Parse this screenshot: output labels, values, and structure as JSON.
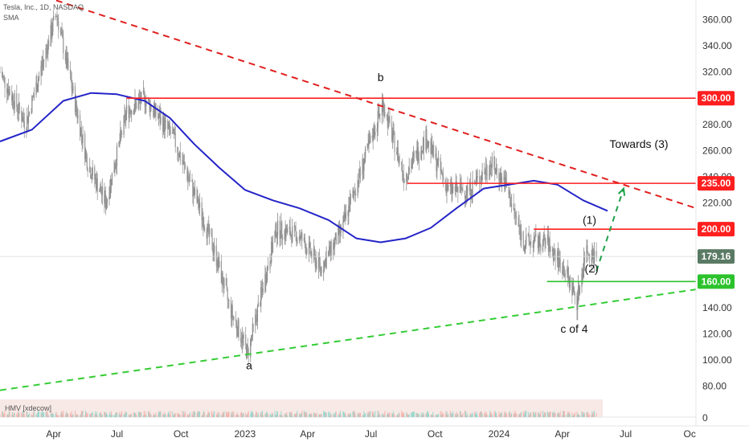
{
  "header": {
    "symbol_line": "Tesla, Inc., 1D, NASDAQ",
    "indicator_label": "SMA",
    "volume_label": "HMV [xdecow]"
  },
  "chart_data": {
    "type": "candlestick",
    "title": "",
    "xlabel": "",
    "ylabel": "",
    "x_tick_labels": [
      "Apr",
      "Jul",
      "Oct",
      "2023",
      "Apr",
      "Jul",
      "Oct",
      "2024",
      "Apr",
      "Jul",
      "Oc"
    ],
    "x_tick_dates": [
      "2022-04-01",
      "2022-07-01",
      "2022-10-01",
      "2023-01-01",
      "2023-04-01",
      "2023-07-01",
      "2023-10-01",
      "2024-01-01",
      "2024-04-01",
      "2024-07-01",
      "2024-10-01"
    ],
    "y_tick_labels": [
      "360.00",
      "340.00",
      "320.00",
      "300.00",
      "280.00",
      "260.00",
      "240.00",
      "220.00",
      "200.00",
      "180.00",
      "160.00",
      "140.00",
      "120.00",
      "100.00",
      "80.00"
    ],
    "volume_axis_label": "0",
    "ylim": [
      70,
      375
    ],
    "xlim": [
      "2022-01-14",
      "2024-10-10"
    ],
    "grid": false,
    "current_price": {
      "value": 179.16,
      "label": "179.16",
      "color": "#5a7a64"
    },
    "horizontal_levels": [
      {
        "value": 300,
        "label": "300.00",
        "color": "#ff1f1f",
        "from": "2022-07-15"
      },
      {
        "value": 235,
        "label": "235.00",
        "color": "#ff1f1f",
        "from": "2023-08-22"
      },
      {
        "value": 200,
        "label": "200.00",
        "color": "#ff1f1f",
        "from": "2024-02-20"
      },
      {
        "value": 160,
        "label": "160.00",
        "color": "#2cc22c",
        "from": "2024-03-10"
      }
    ],
    "trendlines": [
      {
        "name": "upper",
        "style": "dashed",
        "color": "#e0201f",
        "x": [
          "2022-03-05",
          "2024-10-10"
        ],
        "y": [
          380,
          216
        ]
      },
      {
        "name": "lower",
        "style": "dashed",
        "color": "#33cc33",
        "x": [
          "2022-01-14",
          "2024-10-10"
        ],
        "y": [
          77,
          154
        ]
      },
      {
        "name": "projection",
        "style": "dashed",
        "color": "#1fa04a",
        "x": [
          "2024-05-20",
          "2024-06-28"
        ],
        "y": [
          168,
          231
        ]
      }
    ],
    "sma": {
      "color": "#2424c8",
      "x": [
        "2022-01-14",
        "2022-03-01",
        "2022-04-15",
        "2022-05-25",
        "2022-07-01",
        "2022-08-10",
        "2022-09-15",
        "2022-10-20",
        "2022-11-25",
        "2023-01-01",
        "2023-02-10",
        "2023-03-20",
        "2023-05-01",
        "2023-06-10",
        "2023-07-15",
        "2023-08-20",
        "2023-09-25",
        "2023-11-01",
        "2023-12-10",
        "2024-01-15",
        "2024-02-20",
        "2024-03-25",
        "2024-05-01",
        "2024-06-05"
      ],
      "y": [
        267,
        276,
        298,
        304,
        303,
        298,
        285,
        265,
        247,
        230,
        222,
        216,
        207,
        193,
        190,
        193,
        201,
        216,
        231,
        234,
        237,
        234,
        222,
        214
      ]
    },
    "price_path": {
      "x": [
        "2022-01-14",
        "2022-02-20",
        "2022-04-05",
        "2022-05-20",
        "2022-06-15",
        "2022-07-15",
        "2022-08-10",
        "2022-09-20",
        "2022-10-25",
        "2022-11-20",
        "2022-12-10",
        "2023-01-05",
        "2023-02-15",
        "2023-03-20",
        "2023-04-20",
        "2023-05-20",
        "2023-06-20",
        "2023-07-18",
        "2023-08-18",
        "2023-09-18",
        "2023-10-20",
        "2023-11-20",
        "2023-12-20",
        "2024-01-10",
        "2024-02-05",
        "2024-03-10",
        "2024-04-05",
        "2024-04-22",
        "2024-05-05",
        "2024-05-20"
      ],
      "y": [
        320,
        280,
        365,
        250,
        220,
        290,
        300,
        270,
        220,
        180,
        140,
        105,
        200,
        195,
        170,
        200,
        250,
        296,
        240,
        270,
        230,
        230,
        250,
        235,
        190,
        190,
        168,
        145,
        185,
        179
      ]
    },
    "annotations": [
      {
        "text": "a",
        "x": "2023-01-07",
        "y": 93
      },
      {
        "text": "b",
        "x": "2023-07-15",
        "y": 313
      },
      {
        "text": "c of 4",
        "x": "2024-04-18",
        "y": 121
      },
      {
        "text": "(1)",
        "x": "2024-05-10",
        "y": 204
      },
      {
        "text": "(2)",
        "x": "2024-05-13",
        "y": 167
      },
      {
        "text": "Towards (3)",
        "x": "2024-07-20",
        "y": 262
      }
    ]
  },
  "colors": {
    "candle_up": "#8a8a8a",
    "candle_down": "#9a9a9a",
    "axis_text": "#333333"
  }
}
